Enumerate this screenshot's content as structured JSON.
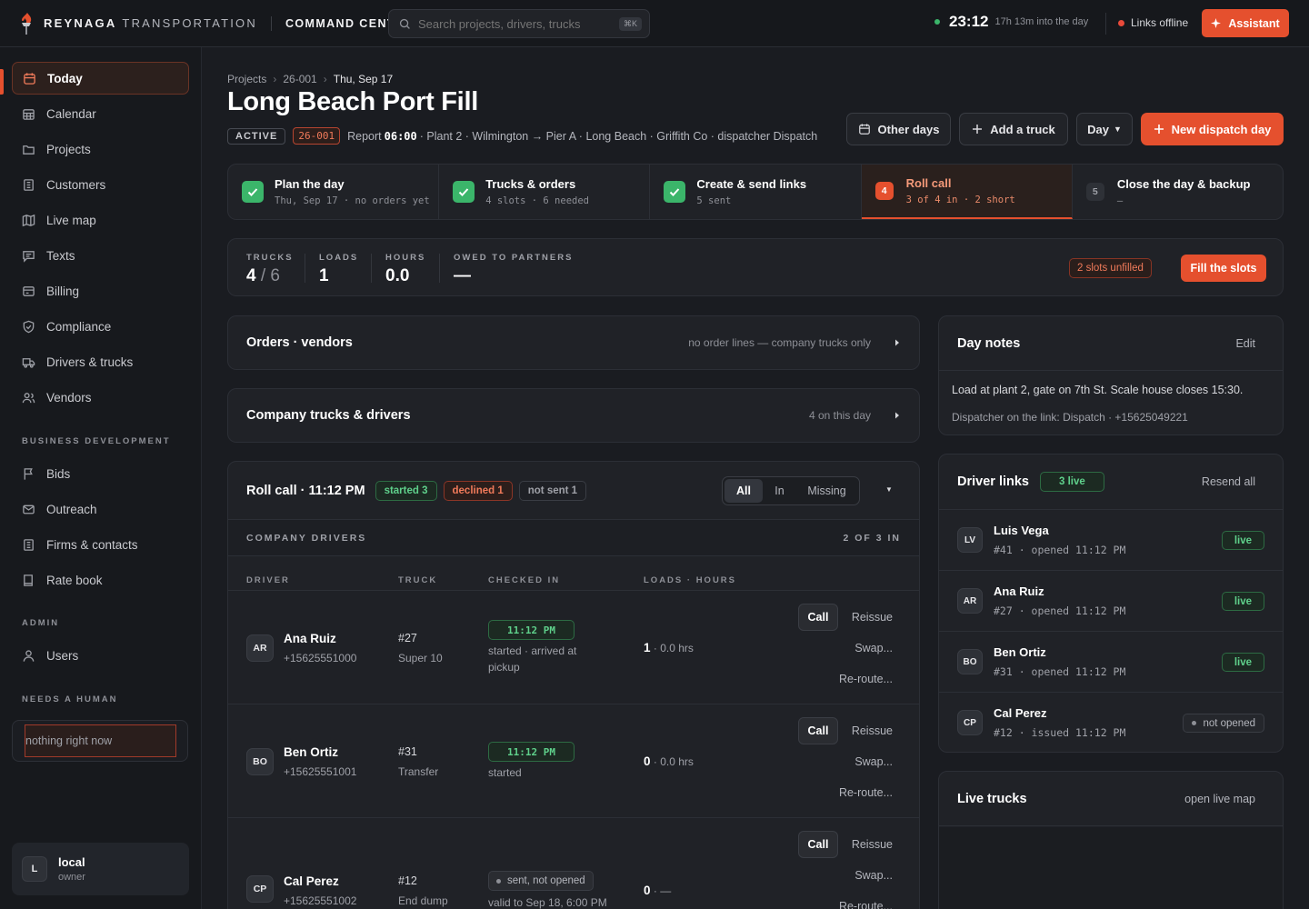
{
  "topbar": {
    "brand_bold": "REYNAGA",
    "brand_light": "TRANSPORTATION",
    "section": "COMMAND CENTER",
    "search_placeholder": "Search projects, drivers, trucks",
    "search_shortcut": "⌘K",
    "clock": "23:12",
    "clock_sub": "17h 13m into the day",
    "links_status": "Links offline",
    "assistant_label": "Assistant"
  },
  "sidebar": {
    "items": [
      {
        "label": "Today",
        "icon": "calendar-icon"
      },
      {
        "label": "Calendar",
        "icon": "calendar-grid-icon"
      },
      {
        "label": "Projects",
        "icon": "folder-icon"
      },
      {
        "label": "Customers",
        "icon": "building-icon"
      },
      {
        "label": "Live map",
        "icon": "map-icon"
      },
      {
        "label": "Texts",
        "icon": "message-icon"
      },
      {
        "label": "Billing",
        "icon": "receipt-icon"
      },
      {
        "label": "Compliance",
        "icon": "shield-icon"
      },
      {
        "label": "Drivers & trucks",
        "icon": "truck-icon"
      },
      {
        "label": "Vendors",
        "icon": "users-icon"
      }
    ],
    "bizdev_heading": "BUSINESS DEVELOPMENT",
    "bizdev_items": [
      {
        "label": "Bids",
        "icon": "flag-icon"
      },
      {
        "label": "Outreach",
        "icon": "mail-icon"
      },
      {
        "label": "Firms & contacts",
        "icon": "building-icon"
      },
      {
        "label": "Rate book",
        "icon": "book-icon"
      }
    ],
    "admin_heading": "ADMIN",
    "admin_items": [
      {
        "label": "Users",
        "icon": "user-icon"
      }
    ],
    "needs_heading": "NEEDS A HUMAN",
    "needs_text": "nothing right now",
    "user": {
      "initial": "L",
      "name": "local",
      "role": "owner"
    }
  },
  "header": {
    "breadcrumb": [
      "Projects",
      "26-001",
      "Thu, Sep 17"
    ],
    "title": "Long Beach Port Fill",
    "status": "ACTIVE",
    "code": "26-001",
    "report_label": "Report",
    "report_time": "06:00",
    "meta_rest": "· Plant 2 · Wilmington → Pier A · Long Beach · Griffith Co · dispatcher Dispatch",
    "buttons": {
      "other_days": "Other days",
      "add_truck": "Add a truck",
      "day": "Day",
      "new_day": "New dispatch day"
    }
  },
  "steps": [
    {
      "title": "Plan the day",
      "sub": "Thu, Sep 17 · no orders yet",
      "state": "done"
    },
    {
      "title": "Trucks & orders",
      "sub": "4 slots · 6 needed",
      "state": "done"
    },
    {
      "title": "Create & send links",
      "sub": "5 sent",
      "state": "done"
    },
    {
      "num": "4",
      "title": "Roll call",
      "sub": "3 of 4 in · 2 short",
      "state": "current"
    },
    {
      "num": "5",
      "title": "Close the day & backup",
      "sub": "—",
      "state": "todo"
    }
  ],
  "stats": {
    "trucks_label": "TRUCKS",
    "trucks_value": "4",
    "trucks_total": "6",
    "loads_label": "LOADS",
    "loads_value": "1",
    "hours_label": "HOURS",
    "hours_value": "0.0",
    "owed_label": "OWED TO PARTNERS",
    "owed_value": "—",
    "slots_badge": "2 slots unfilled",
    "fill_button": "Fill the slots"
  },
  "orders_card": {
    "title": "Orders · vendors",
    "note": "no order lines — company trucks only"
  },
  "company_card": {
    "title": "Company trucks & drivers",
    "note": "4 on this day"
  },
  "roll_call": {
    "title": "Roll call · 11:12 PM",
    "pills": {
      "started": "started 3",
      "declined": "declined 1",
      "not_sent": "not sent 1"
    },
    "filters": [
      "All",
      "In",
      "Missing"
    ],
    "section_label": "COMPANY DRIVERS",
    "section_count": "2 OF 3 IN",
    "columns": [
      "DRIVER",
      "TRUCK",
      "CHECKED IN",
      "LOADS · HOURS"
    ],
    "rows": [
      {
        "initials": "AR",
        "name": "Ana Ruiz",
        "phone": "+15625551000",
        "truck": "#27",
        "truck_type": "Super 10",
        "badge": "11:12 PM",
        "status": "started · arrived at pickup",
        "loads": "1",
        "hours": "· 0.0 hrs"
      },
      {
        "initials": "BO",
        "name": "Ben Ortiz",
        "phone": "+15625551001",
        "truck": "#31",
        "truck_type": "Transfer",
        "badge": "11:12 PM",
        "status": "started",
        "loads": "0",
        "hours": "· 0.0 hrs"
      },
      {
        "initials": "CP",
        "name": "Cal Perez",
        "phone": "+15625551002",
        "truck": "#12",
        "truck_type": "End dump",
        "badge": "sent, not opened",
        "status": "valid to Sep 18, 6:00 PM",
        "loads": "0",
        "hours": "· —"
      }
    ],
    "actions": {
      "call": "Call",
      "reissue": "Reissue",
      "swap": "Swap...",
      "reroute": "Re-route..."
    }
  },
  "day_notes": {
    "title": "Day notes",
    "edit": "Edit",
    "text": "Load at plant 2, gate on 7th St. Scale house closes 15:30.",
    "sub": "Dispatcher on the link: Dispatch · +15625049221"
  },
  "driver_links": {
    "title": "Driver links",
    "live_badge": "3 live",
    "resend": "Resend all",
    "rows": [
      {
        "initials": "LV",
        "name": "Luis Vega",
        "sub": "#41 · opened 11:12 PM",
        "status": "live"
      },
      {
        "initials": "AR",
        "name": "Ana Ruiz",
        "sub": "#27 · opened 11:12 PM",
        "status": "live"
      },
      {
        "initials": "BO",
        "name": "Ben Ortiz",
        "sub": "#31 · opened 11:12 PM",
        "status": "live"
      },
      {
        "initials": "CP",
        "name": "Cal Perez",
        "sub": "#12 · issued 11:12 PM",
        "status": "not opened"
      }
    ]
  },
  "live_trucks": {
    "title": "Live trucks",
    "link": "open live map"
  }
}
